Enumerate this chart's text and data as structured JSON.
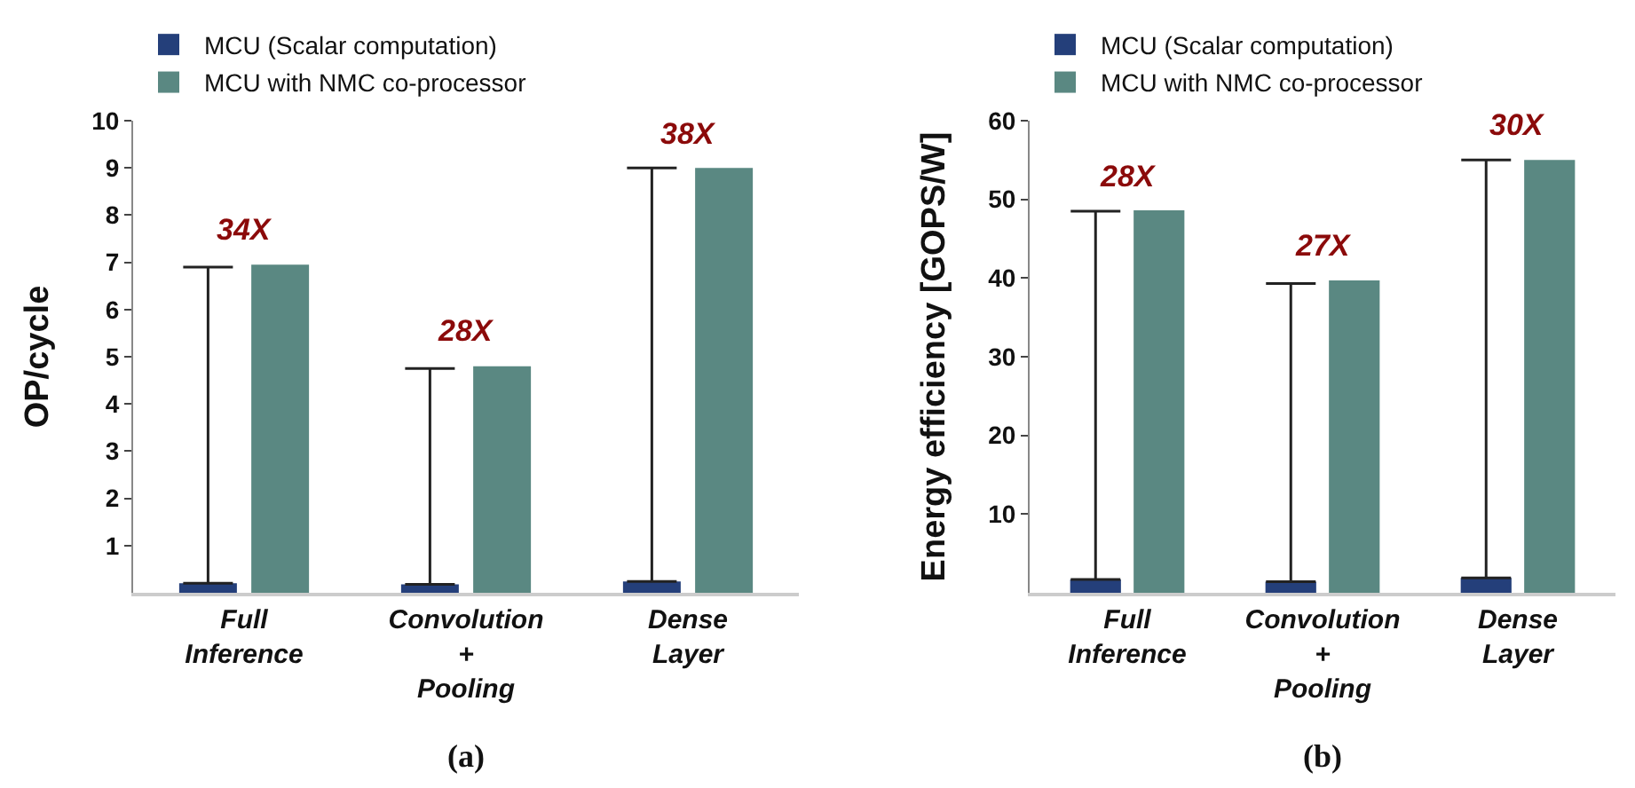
{
  "chart_data": [
    {
      "type": "bar",
      "ylabel": "OP/cycle",
      "categories": [
        "Full Inference",
        "Convolution + Pooling",
        "Dense Layer"
      ],
      "series": [
        {
          "name": "MCU (Scalar computation)",
          "color": "#243f7a",
          "values": [
            0.2,
            0.18,
            0.24
          ],
          "errors": [
            [
              0.2,
              6.9
            ],
            [
              0.18,
              4.75
            ],
            [
              0.24,
              9.0
            ]
          ]
        },
        {
          "name": "MCU with NMC co-processor",
          "color": "#5a8882",
          "values": [
            6.95,
            4.8,
            9.0
          ]
        }
      ],
      "ylim": [
        0,
        10
      ],
      "yticks": [
        1,
        2,
        3,
        4,
        5,
        6,
        7,
        8,
        9,
        10
      ],
      "grid": false,
      "legend": "top left",
      "annotations": [
        {
          "text": "34X",
          "x": "Full Inference",
          "y": 6.95
        },
        {
          "text": "28X",
          "x": "Convolution + Pooling",
          "y": 4.8
        },
        {
          "text": "38X",
          "x": "Dense Layer",
          "y": 9.0
        },
        "(a)"
      ]
    },
    {
      "type": "bar",
      "ylabel": "Energy efficiency [GOPS/W]",
      "categories": [
        "Full Inference",
        "Convolution + Pooling",
        "Dense Layer"
      ],
      "series": [
        {
          "name": "MCU (Scalar computation)",
          "color": "#243f7a",
          "values": [
            1.7,
            1.4,
            1.9
          ],
          "errors": [
            [
              1.7,
              48.5
            ],
            [
              1.4,
              39.3
            ],
            [
              1.9,
              55.0
            ]
          ]
        },
        {
          "name": "MCU with NMC co-processor",
          "color": "#5a8882",
          "values": [
            48.6,
            39.7,
            55.0
          ]
        }
      ],
      "ylim": [
        0,
        60
      ],
      "yticks": [
        10,
        20,
        30,
        40,
        50,
        60
      ],
      "grid": false,
      "legend": "top left",
      "annotations": [
        {
          "text": "28X",
          "x": "Full Inference",
          "y": 48.6
        },
        {
          "text": "27X",
          "x": "Convolution + Pooling",
          "y": 39.7
        },
        {
          "text": "30X",
          "x": "Dense Layer",
          "y": 55.0
        },
        "(b)"
      ]
    }
  ]
}
